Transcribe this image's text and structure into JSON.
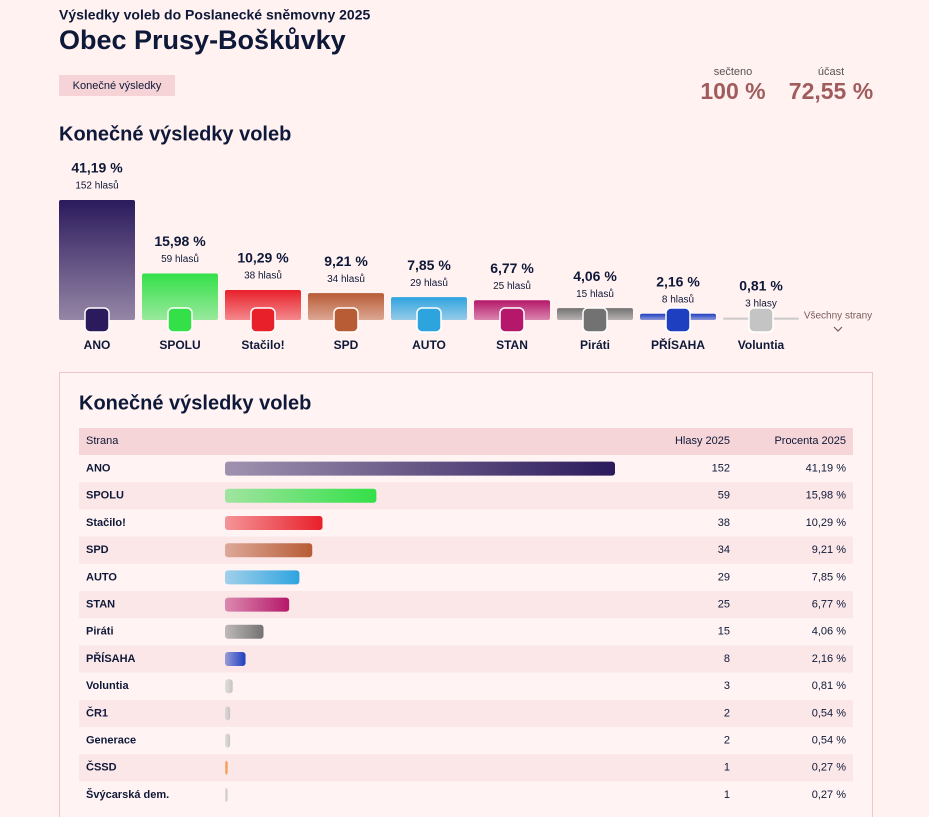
{
  "header": {
    "supertitle": "Výsledky voleb do Poslanecké sněmovny 2025",
    "title": "Obec Prusy-Boškůvky",
    "badge": "Konečné výsledky"
  },
  "stats": [
    {
      "label": "sečteno",
      "value": "100 %"
    },
    {
      "label": "účast",
      "value": "72,55 %"
    }
  ],
  "overview": {
    "title": "Konečné výsledky voleb",
    "more": "Všechny strany",
    "parties": [
      {
        "name": "ANO",
        "percent": {
          "value": 41.19,
          "label": "41,19 %"
        },
        "votes": "152 hlasů",
        "color": "#2b1a5c"
      },
      {
        "name": "SPOLU",
        "percent": {
          "value": 15.98,
          "label": "15,98 %"
        },
        "votes": "59 hlasů",
        "color": "#33e048"
      },
      {
        "name": "Stačilo!",
        "percent": {
          "value": 10.29,
          "label": "10,29 %"
        },
        "votes": "38 hlasů",
        "color": "#e8202a"
      },
      {
        "name": "SPD",
        "percent": {
          "value": 9.21,
          "label": "9,21 %"
        },
        "votes": "34 hlasů",
        "color": "#b85c36"
      },
      {
        "name": "AUTO",
        "percent": {
          "value": 7.85,
          "label": "7,85 %"
        },
        "votes": "29 hlasů",
        "color": "#2ea4df"
      },
      {
        "name": "STAN",
        "percent": {
          "value": 6.77,
          "label": "6,77 %"
        },
        "votes": "25 hlasů",
        "color": "#b5186a"
      },
      {
        "name": "Piráti",
        "percent": {
          "value": 4.06,
          "label": "4,06 %"
        },
        "votes": "15 hlasů",
        "color": "#727272"
      },
      {
        "name": "PŘÍSAHA",
        "percent": {
          "value": 2.16,
          "label": "2,16 %"
        },
        "votes": "8 hlasů",
        "color": "#1e3fc0"
      },
      {
        "name": "Voluntia",
        "percent": {
          "value": 0.81,
          "label": "0,81 %"
        },
        "votes": "3 hlasy",
        "color": "#c4c4c4"
      }
    ]
  },
  "table": {
    "title": "Konečné výsledky voleb",
    "columns": [
      "Strana",
      "Hlasy 2025",
      "Procenta 2025"
    ],
    "rows": [
      {
        "name": "ANO",
        "votes": 152,
        "percent": "41,19 %",
        "color": "#2b1a5c"
      },
      {
        "name": "SPOLU",
        "votes": 59,
        "percent": "15,98 %",
        "color": "#33e048"
      },
      {
        "name": "Stačilo!",
        "votes": 38,
        "percent": "10,29 %",
        "color": "#e8202a"
      },
      {
        "name": "SPD",
        "votes": 34,
        "percent": "9,21 %",
        "color": "#b85c36"
      },
      {
        "name": "AUTO",
        "votes": 29,
        "percent": "7,85 %",
        "color": "#2ea4df"
      },
      {
        "name": "STAN",
        "votes": 25,
        "percent": "6,77 %",
        "color": "#b5186a"
      },
      {
        "name": "Piráti",
        "votes": 15,
        "percent": "4,06 %",
        "color": "#727272"
      },
      {
        "name": "PŘÍSAHA",
        "votes": 8,
        "percent": "2,16 %",
        "color": "#1e3fc0"
      },
      {
        "name": "Voluntia",
        "votes": 3,
        "percent": "0,81 %",
        "color": "#c4c4c4"
      },
      {
        "name": "ČR1",
        "votes": 2,
        "percent": "0,54 %",
        "color": "#c4c4c4"
      },
      {
        "name": "Generace",
        "votes": 2,
        "percent": "0,54 %",
        "color": "#c4c4c4"
      },
      {
        "name": "ČSSD",
        "votes": 1,
        "percent": "0,27 %",
        "color": "#f08a30"
      },
      {
        "name": "Švýcarská dem.",
        "votes": 1,
        "percent": "0,27 %",
        "color": "#c4c4c4"
      }
    ]
  }
}
